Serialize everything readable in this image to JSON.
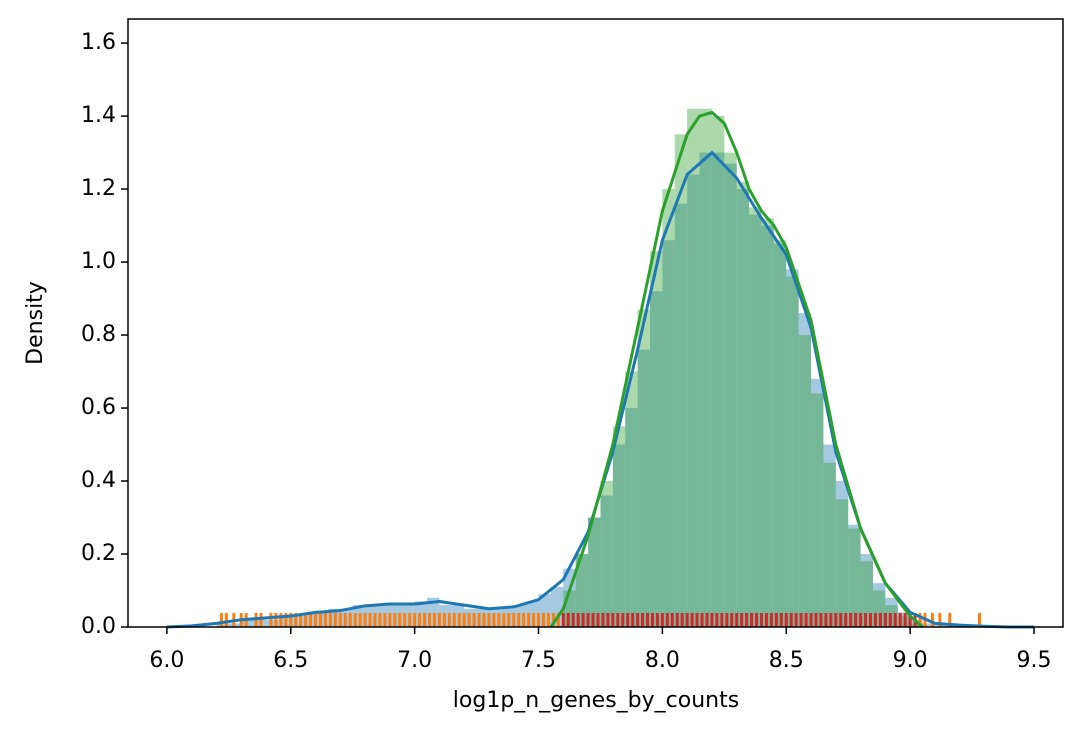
{
  "chart_data": {
    "type": "histogram",
    "xlabel": "log1p_n_genes_by_counts",
    "ylabel": "Density",
    "xlim": [
      5.843,
      9.617
    ],
    "ylim": [
      0,
      1.666
    ],
    "xticks": [
      {
        "value": 6.0,
        "label": "6.0"
      },
      {
        "value": 6.5,
        "label": "6.5"
      },
      {
        "value": 7.0,
        "label": "7.0"
      },
      {
        "value": 7.5,
        "label": "7.5"
      },
      {
        "value": 8.0,
        "label": "8.0"
      },
      {
        "value": 8.5,
        "label": "8.5"
      },
      {
        "value": 9.0,
        "label": "9.0"
      },
      {
        "value": 9.5,
        "label": "9.5"
      }
    ],
    "yticks": [
      {
        "value": 0,
        "label": "0.0"
      },
      {
        "value": 0.2,
        "label": "0.2"
      },
      {
        "value": 0.4,
        "label": "0.4"
      },
      {
        "value": 0.6,
        "label": "0.6"
      },
      {
        "value": 0.8,
        "label": "0.8"
      },
      {
        "value": 1.0,
        "label": "1.0"
      },
      {
        "value": 1.2,
        "label": "1.2"
      },
      {
        "value": 1.4,
        "label": "1.4"
      },
      {
        "value": 1.6,
        "label": "1.6"
      }
    ],
    "series": [
      {
        "color": "#1f77b4",
        "opacity": 0.4,
        "bins": [
          6.2,
          6.25,
          6.3,
          6.35,
          6.4,
          6.45,
          6.5,
          6.55,
          6.6,
          6.65,
          6.7,
          6.75,
          6.8,
          6.85,
          6.9,
          6.95,
          7.0,
          7.05,
          7.1,
          7.15,
          7.2,
          7.25,
          7.3,
          7.35,
          7.4,
          7.45,
          7.5,
          7.55,
          7.6,
          7.65,
          7.7,
          7.75,
          7.8,
          7.85,
          7.9,
          7.95,
          8.0,
          8.05,
          8.1,
          8.15,
          8.2,
          8.25,
          8.3,
          8.35,
          8.4,
          8.45,
          8.5,
          8.55,
          8.6,
          8.65,
          8.7,
          8.75,
          8.8,
          8.85,
          8.9,
          8.95,
          9.0,
          9.05,
          9.1,
          9.15,
          9.2,
          9.25,
          9.3
        ],
        "values": [
          0.01,
          0.01,
          0.02,
          0.02,
          0.02,
          0.03,
          0.03,
          0.04,
          0.04,
          0.05,
          0.05,
          0.06,
          0.06,
          0.06,
          0.06,
          0.06,
          0.07,
          0.08,
          0.06,
          0.06,
          0.05,
          0.05,
          0.05,
          0.05,
          0.06,
          0.07,
          0.09,
          0.11,
          0.16,
          0.2,
          0.3,
          0.36,
          0.5,
          0.6,
          0.76,
          0.92,
          1.06,
          1.16,
          1.24,
          1.3,
          1.3,
          1.27,
          1.2,
          1.13,
          1.1,
          1.05,
          0.98,
          0.86,
          0.68,
          0.5,
          0.4,
          0.28,
          0.2,
          0.12,
          0.08,
          0.04,
          0.02,
          0.01,
          0.005,
          0.003,
          0.002,
          0.001
        ]
      },
      {
        "color": "#2ca02c",
        "opacity": 0.4,
        "bins": [
          7.6,
          7.65,
          7.7,
          7.75,
          7.8,
          7.85,
          7.9,
          7.95,
          8.0,
          8.05,
          8.1,
          8.15,
          8.2,
          8.25,
          8.3,
          8.35,
          8.4,
          8.45,
          8.5,
          8.55,
          8.6,
          8.65,
          8.7,
          8.75,
          8.8,
          8.85,
          8.9,
          8.95,
          9.0,
          9.05
        ],
        "values": [
          0.1,
          0.2,
          0.3,
          0.4,
          0.55,
          0.7,
          0.87,
          1.03,
          1.2,
          1.35,
          1.42,
          1.42,
          1.4,
          1.3,
          1.22,
          1.15,
          1.12,
          1.06,
          0.96,
          0.8,
          0.64,
          0.45,
          0.35,
          0.27,
          0.18,
          0.1,
          0.06,
          0.03,
          0.01
        ]
      }
    ],
    "kde": [
      {
        "color": "#1f77b4",
        "x": [
          6.0,
          6.1,
          6.2,
          6.3,
          6.4,
          6.5,
          6.6,
          6.7,
          6.8,
          6.9,
          7.0,
          7.1,
          7.2,
          7.3,
          7.4,
          7.5,
          7.6,
          7.7,
          7.8,
          7.9,
          8.0,
          8.1,
          8.2,
          8.3,
          8.4,
          8.5,
          8.6,
          8.7,
          8.8,
          8.9,
          9.0,
          9.1,
          9.2,
          9.3,
          9.4,
          9.5
        ],
        "values": [
          0,
          0.003,
          0.01,
          0.02,
          0.025,
          0.03,
          0.04,
          0.045,
          0.058,
          0.063,
          0.063,
          0.07,
          0.06,
          0.05,
          0.055,
          0.075,
          0.13,
          0.26,
          0.48,
          0.76,
          1.06,
          1.24,
          1.3,
          1.23,
          1.12,
          1.02,
          0.82,
          0.48,
          0.27,
          0.12,
          0.04,
          0.01,
          0.005,
          0.002,
          0,
          0
        ]
      },
      {
        "color": "#2ca02c",
        "x": [
          7.55,
          7.6,
          7.7,
          7.8,
          7.9,
          8.0,
          8.1,
          8.15,
          8.2,
          8.25,
          8.3,
          8.35,
          8.4,
          8.45,
          8.5,
          8.6,
          8.7,
          8.8,
          8.9,
          9.0,
          9.05
        ],
        "values": [
          0,
          0.05,
          0.25,
          0.5,
          0.82,
          1.14,
          1.35,
          1.4,
          1.41,
          1.38,
          1.3,
          1.2,
          1.14,
          1.1,
          1.04,
          0.84,
          0.5,
          0.27,
          0.12,
          0.03,
          0
        ]
      }
    ],
    "rug": [
      {
        "color": "#ff7f0e",
        "x": [
          6.22,
          6.24,
          6.27,
          6.3,
          6.32,
          6.36,
          6.38,
          6.42,
          6.44,
          6.46,
          6.48,
          6.5,
          6.52,
          6.54,
          6.56,
          6.58,
          6.6,
          6.62,
          6.64,
          6.66,
          6.68,
          6.7,
          6.72,
          6.74,
          6.76,
          6.78,
          6.8,
          6.82,
          6.84,
          6.86,
          6.88,
          6.9,
          6.92,
          6.94,
          6.96,
          6.98,
          7.0,
          7.02,
          7.04,
          7.06,
          7.08,
          7.1,
          7.12,
          7.14,
          7.16,
          7.18,
          7.2,
          7.22,
          7.24,
          7.26,
          7.28,
          7.3,
          7.32,
          7.34,
          7.36,
          7.38,
          7.4,
          7.42,
          7.44,
          7.46,
          7.48,
          7.5,
          7.52,
          7.54,
          7.56,
          7.58,
          9.04,
          9.06,
          9.09,
          9.12,
          9.16,
          9.28
        ]
      },
      {
        "color": "#d62728",
        "x": [
          7.6,
          7.62,
          7.64,
          7.66,
          7.68,
          7.7,
          7.72,
          7.74,
          7.76,
          7.78,
          7.8,
          7.82,
          7.84,
          7.86,
          7.88,
          7.9,
          7.92,
          7.94,
          7.96,
          7.98,
          8.0,
          8.02,
          8.04,
          8.06,
          8.08,
          8.1,
          8.12,
          8.14,
          8.16,
          8.18,
          8.2,
          8.22,
          8.24,
          8.26,
          8.28,
          8.3,
          8.32,
          8.34,
          8.36,
          8.38,
          8.4,
          8.42,
          8.44,
          8.46,
          8.48,
          8.5,
          8.52,
          8.54,
          8.56,
          8.58,
          8.6,
          8.62,
          8.64,
          8.66,
          8.68,
          8.7,
          8.72,
          8.74,
          8.76,
          8.78,
          8.8,
          8.82,
          8.84,
          8.86,
          8.88,
          8.9,
          8.92,
          8.94,
          8.96,
          8.98,
          9.0,
          9.02
        ]
      }
    ]
  }
}
